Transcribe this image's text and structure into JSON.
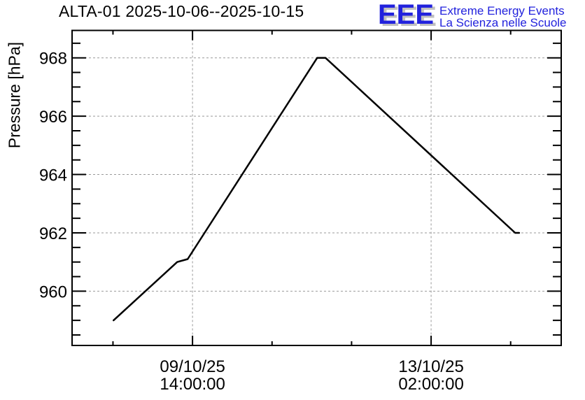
{
  "header": {
    "title": "ALTA-01 2025-10-06--2025-10-15",
    "logo": {
      "acronym": "EEE",
      "tagline_en": "Extreme Energy Events",
      "tagline_it": "La Scienza nelle Scuole",
      "blue": "#2222dd",
      "shadow_gray": "#c0c0c0"
    }
  },
  "chart_data": {
    "type": "line",
    "title": "ALTA-01 2025-10-06--2025-10-15",
    "xlabel": "",
    "ylabel": "Pressure [hPa]",
    "x_unit": "hours relative to 09/10/25 14:00:00",
    "xlim": [
      -42.4,
      129.8
    ],
    "ylim": [
      958.14,
      968.94
    ],
    "y_major_ticks": [
      960,
      962,
      964,
      966,
      968
    ],
    "y_minor_step": 0.5,
    "x_major_ticks": [
      {
        "t": 0,
        "date": "09/10/25",
        "time": "14:00:00"
      },
      {
        "t": 84,
        "date": "13/10/25",
        "time": "02:00:00"
      }
    ],
    "x_minor_step": 28,
    "grid": true,
    "grid_color": "#999999",
    "line_color": "#000000",
    "series": [
      {
        "name": "Pressure",
        "points": [
          [
            -27.8,
            959.0
          ],
          [
            -5.4,
            961.0
          ],
          [
            -1.7,
            961.1
          ],
          [
            43.9,
            968.0
          ],
          [
            46.8,
            968.0
          ],
          [
            113.6,
            962.0
          ],
          [
            115.0,
            962.0
          ]
        ]
      }
    ]
  }
}
